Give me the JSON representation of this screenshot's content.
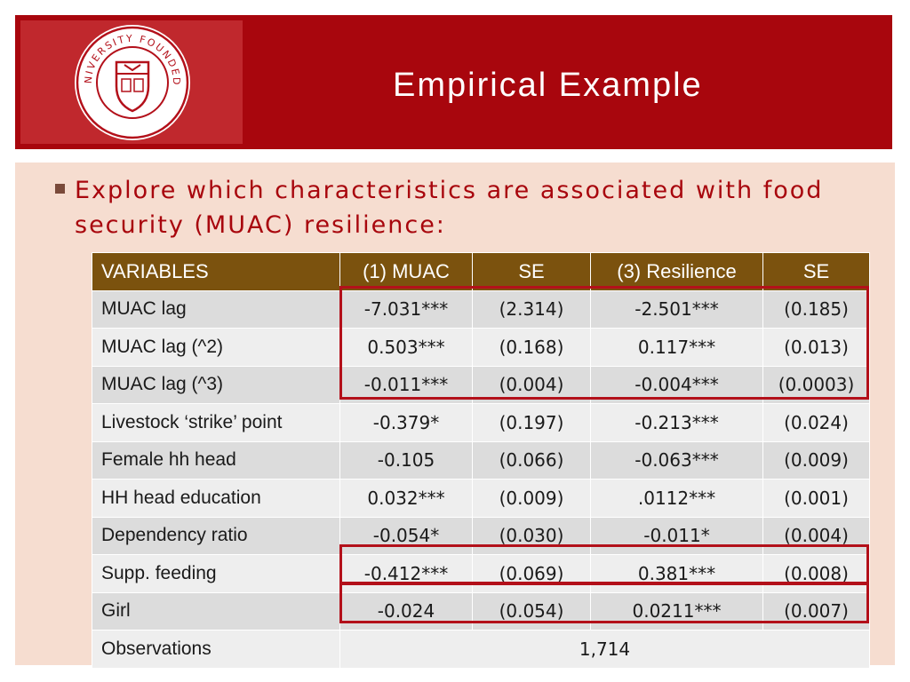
{
  "logo": {
    "name": "cornell-university-seal",
    "text": "CORNELL UNIVERSITY FOUNDED A.D. 1865"
  },
  "slide": {
    "title": "Empirical Example"
  },
  "bullet": {
    "line1": "Explore which characteristics are associated with food",
    "line2": "security (MUAC) resilience:"
  },
  "table": {
    "headers": [
      "VARIABLES",
      "(1) MUAC",
      "SE",
      "(3) Resilience",
      "SE"
    ],
    "rows": [
      [
        "MUAC lag",
        "-7.031***",
        "(2.314)",
        "-2.501***",
        "(0.185)"
      ],
      [
        "MUAC lag (^2)",
        "0.503***",
        "(0.168)",
        "0.117***",
        "(0.013)"
      ],
      [
        "MUAC lag (^3)",
        "-0.011***",
        "(0.004)",
        "-0.004***",
        "(0.0003)"
      ],
      [
        "Livestock ‘strike’ point",
        "-0.379*",
        "(0.197)",
        "-0.213***",
        "(0.024)"
      ],
      [
        "Female hh head",
        "-0.105",
        "(0.066)",
        "-0.063***",
        "(0.009)"
      ],
      [
        "HH head education",
        "0.032***",
        "(0.009)",
        ".0112***",
        "(0.001)"
      ],
      [
        "Dependency ratio",
        "-0.054*",
        "(0.030)",
        "-0.011*",
        "(0.004)"
      ],
      [
        "Supp. feeding",
        "-0.412***",
        "(0.069)",
        "0.381***",
        "(0.008)"
      ],
      [
        "Girl",
        "-0.024",
        "(0.054)",
        "0.0211***",
        "(0.007)"
      ]
    ],
    "observations_label": "Observations",
    "observations_value": "1,714"
  },
  "colors": {
    "header_red": "#a8060d",
    "table_header": "#7b520e",
    "highlight": "#b3101a",
    "content_bg": "#f6ddd0"
  }
}
